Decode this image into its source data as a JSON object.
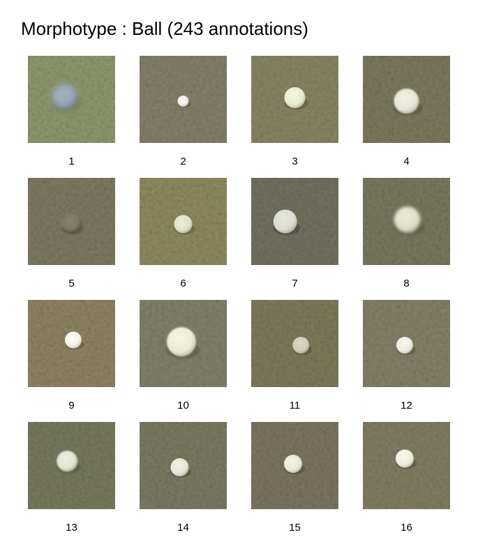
{
  "title": "Morphotype : Ball (243 annotations)",
  "tiles": [
    {
      "label": "1",
      "bg": "#8e9a6f",
      "ball": "#9aa6b8",
      "r": 18,
      "dx": 0.42,
      "dy": 0.47,
      "blur": 4
    },
    {
      "label": "2",
      "bg": "#84806a",
      "ball": "#efede3",
      "r": 8,
      "dx": 0.5,
      "dy": 0.52,
      "blur": 0
    },
    {
      "label": "3",
      "bg": "#8a8665",
      "ball": "#e9ead4",
      "r": 15,
      "dx": 0.5,
      "dy": 0.48,
      "blur": 0
    },
    {
      "label": "4",
      "bg": "#7c7a5e",
      "ball": "#e6e6d6",
      "r": 18,
      "dx": 0.5,
      "dy": 0.52,
      "blur": 1
    },
    {
      "label": "5",
      "bg": "#7f7a62",
      "ball": "#7e7664",
      "r": 14,
      "dx": 0.5,
      "dy": 0.52,
      "blur": 1
    },
    {
      "label": "6",
      "bg": "#8f8c60",
      "ball": "#e1e0c8",
      "r": 13,
      "dx": 0.5,
      "dy": 0.53,
      "blur": 0
    },
    {
      "label": "7",
      "bg": "#737260",
      "ball": "#d9dccf",
      "r": 17,
      "dx": 0.39,
      "dy": 0.5,
      "blur": 0
    },
    {
      "label": "8",
      "bg": "#7a7a60",
      "ball": "#dedfc8",
      "r": 19,
      "dx": 0.51,
      "dy": 0.48,
      "blur": 2
    },
    {
      "label": "9",
      "bg": "#8f8563",
      "ball": "#f1f1e9",
      "r": 12,
      "dx": 0.52,
      "dy": 0.46,
      "blur": 0
    },
    {
      "label": "10",
      "bg": "#81826a",
      "ball": "#ebebd6",
      "r": 21,
      "dx": 0.48,
      "dy": 0.48,
      "blur": 1
    },
    {
      "label": "11",
      "bg": "#7f7b5b",
      "ball": "#cfcdb8",
      "r": 12,
      "dx": 0.57,
      "dy": 0.52,
      "blur": 0
    },
    {
      "label": "12",
      "bg": "#848168",
      "ball": "#ecece3",
      "r": 12,
      "dx": 0.48,
      "dy": 0.52,
      "blur": 0
    },
    {
      "label": "13",
      "bg": "#787b5e",
      "ball": "#e1e3d2",
      "r": 15,
      "dx": 0.45,
      "dy": 0.45,
      "blur": 1
    },
    {
      "label": "14",
      "bg": "#7c7b63",
      "ball": "#e4e6d7",
      "r": 13,
      "dx": 0.46,
      "dy": 0.52,
      "blur": 0
    },
    {
      "label": "15",
      "bg": "#7d7661",
      "ball": "#e8e8dd",
      "r": 13,
      "dx": 0.48,
      "dy": 0.48,
      "blur": 0
    },
    {
      "label": "16",
      "bg": "#827e64",
      "ball": "#ededdf",
      "r": 13,
      "dx": 0.48,
      "dy": 0.42,
      "blur": 0
    }
  ]
}
